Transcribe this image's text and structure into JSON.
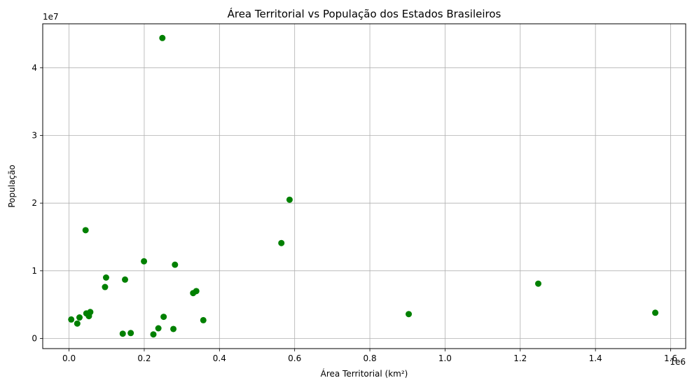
{
  "chart_data": {
    "type": "scatter",
    "title": "Área Territorial vs População dos Estados Brasileiros",
    "xlabel": "Área Territorial (km²)",
    "ylabel": "População",
    "x_offset_label": "1e6",
    "y_offset_label": "1e7",
    "xlim": [
      -70000,
      1640000
    ],
    "ylim": [
      -1500000,
      46500000
    ],
    "x_ticks": [
      0,
      200000,
      400000,
      600000,
      800000,
      1000000,
      1200000,
      1400000,
      1600000
    ],
    "x_tick_labels": [
      "0.0",
      "0.2",
      "0.4",
      "0.6",
      "0.8",
      "1.0",
      "1.2",
      "1.4",
      "1.6"
    ],
    "y_ticks": [
      0,
      10000000,
      20000000,
      30000000,
      40000000
    ],
    "y_tick_labels": [
      "0",
      "1",
      "2",
      "3",
      "4"
    ],
    "grid": true,
    "marker_color": "#008000",
    "series": [
      {
        "points": [
          [
            5800,
            2800000
          ],
          [
            21900,
            2200000
          ],
          [
            27800,
            3100000
          ],
          [
            44000,
            16000000
          ],
          [
            46100,
            3700000
          ],
          [
            52800,
            3300000
          ],
          [
            56500,
            3900000
          ],
          [
            95700,
            7600000
          ],
          [
            98500,
            9000000
          ],
          [
            142800,
            700000
          ],
          [
            148900,
            8700000
          ],
          [
            164100,
            800000
          ],
          [
            199300,
            11400000
          ],
          [
            224300,
            600000
          ],
          [
            237600,
            1500000
          ],
          [
            248200,
            44400000
          ],
          [
            251600,
            3200000
          ],
          [
            277500,
            1400000
          ],
          [
            281700,
            10900000
          ],
          [
            330000,
            6700000
          ],
          [
            338400,
            7000000
          ],
          [
            357100,
            2700000
          ],
          [
            564700,
            14100000
          ],
          [
            586500,
            20500000
          ],
          [
            903400,
            3600000
          ],
          [
            1247900,
            8100000
          ],
          [
            1559100,
            3800000
          ]
        ]
      }
    ]
  }
}
